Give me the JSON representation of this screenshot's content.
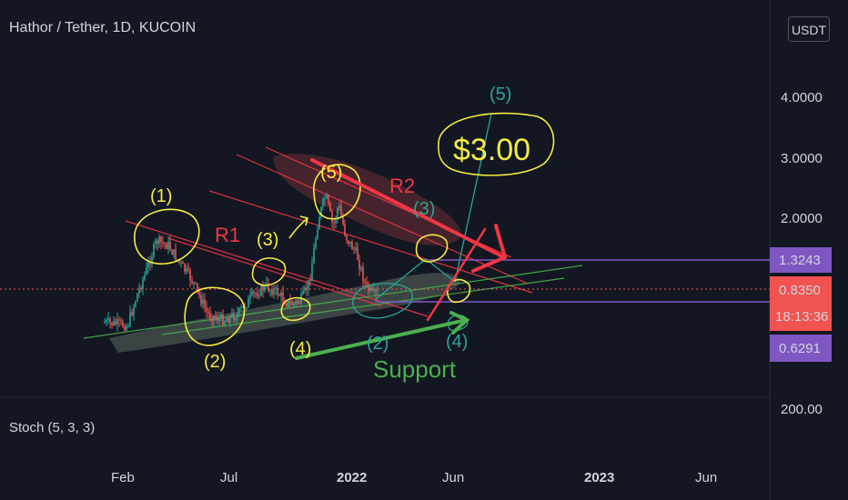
{
  "header": {
    "title": "Hathor / Tether, 1D, KUCOIN",
    "currency_button": "USDT"
  },
  "indicator": {
    "label": "Stoch (5, 3, 3)"
  },
  "chart_data": {
    "type": "candlestick",
    "title": "Hathor / Tether, 1D, KUCOIN",
    "y_scale": "log",
    "y_ticks": [
      "4.0000",
      "3.0000",
      "2.0000"
    ],
    "y_tick_values": [
      4.0,
      3.0,
      2.0
    ],
    "indicator_tick": "200.00",
    "x_ticks": [
      "Feb",
      "Jul",
      "2022",
      "Jun",
      "2023",
      "Jun"
    ],
    "price_labels": [
      {
        "text": "1.3243",
        "value": 1.3243,
        "color": "#7e57c2"
      },
      {
        "text": "0.8350",
        "value": 0.835,
        "color": "#f05350"
      },
      {
        "text": "18:13:36",
        "color": "#f05350"
      },
      {
        "text": "0.6291",
        "value": 0.6291,
        "color": "#7e57c2"
      }
    ],
    "annotations": {
      "wave_yellow": [
        "(1)",
        "(2)",
        "(3)",
        "(4)",
        "(5)"
      ],
      "wave_teal": [
        "(2)",
        "(3)",
        "(4)",
        "(5)"
      ],
      "resistance_labels": [
        "R1",
        "R2"
      ],
      "support_label": "Support",
      "target_label": "$3.00"
    }
  },
  "colors": {
    "background": "#131722",
    "text": "#d1d4dc",
    "bull": "#26a69a",
    "bear": "#ef5350",
    "yellow": "#f5ec42",
    "teal": "#26a69a",
    "red": "#f23645",
    "green": "#4caf50",
    "purple": "#7e57c2"
  }
}
